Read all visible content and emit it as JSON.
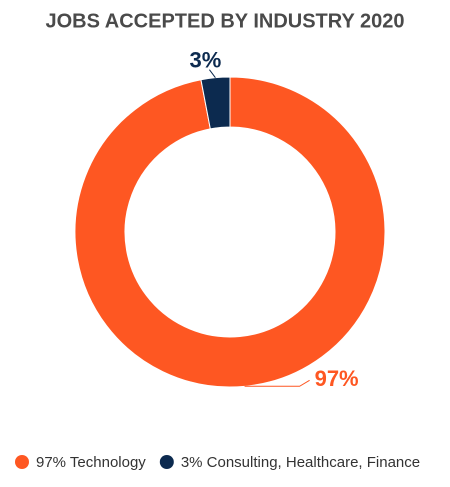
{
  "chart_data": {
    "type": "pie",
    "title": "JOBS ACCEPTED BY INDUSTRY 2020",
    "categories": [
      "97% Technology",
      "3% Consulting, Healthcare, Finance"
    ],
    "values": [
      97,
      3
    ],
    "value_labels": [
      "97%",
      "3%"
    ],
    "colors": [
      "#fe5722",
      "#0c2a4f"
    ],
    "donut": true,
    "legend": "bottom"
  }
}
